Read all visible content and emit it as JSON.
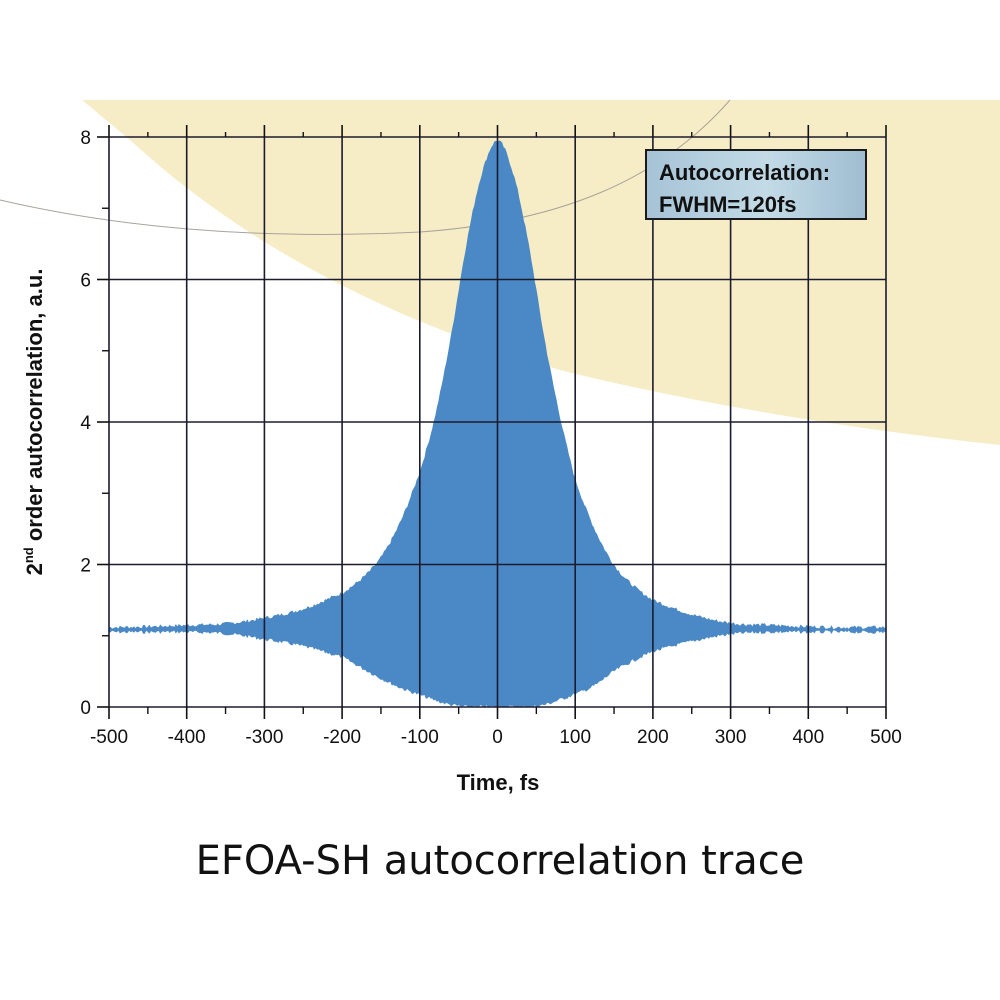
{
  "chart_data": {
    "type": "area",
    "title": "EFOA-SH autocorrelation trace",
    "xlabel": "Time, fs",
    "ylabel": "2nd order autocorrelation, a.u.",
    "ylabel_parts": {
      "base": "2",
      "superscript": "nd",
      "rest": " order autocorrelation, a.u."
    },
    "xlim": [
      -500,
      500
    ],
    "ylim": [
      0,
      8
    ],
    "grid": true,
    "x_ticks": [
      -500,
      -400,
      -300,
      -200,
      -100,
      0,
      100,
      200,
      300,
      400,
      500
    ],
    "x_tick_labels": [
      "-500",
      "-400",
      "-300",
      "-200",
      "-100",
      "0",
      "100",
      "200",
      "300",
      "400",
      "500"
    ],
    "y_ticks": [
      0,
      2,
      4,
      6,
      8
    ],
    "y_tick_labels": [
      "0",
      "2",
      "4",
      "6",
      "8"
    ],
    "annotation": {
      "line1": "Autocorrelation:",
      "line2": "FWHM=120fs"
    },
    "fill_color": "#4a89c6",
    "series": [
      {
        "name": "upper envelope",
        "x": [
          -500,
          -450,
          -400,
          -350,
          -300,
          -250,
          -200,
          -175,
          -150,
          -125,
          -100,
          -80,
          -60,
          -40,
          -20,
          0,
          20,
          40,
          60,
          80,
          100,
          125,
          150,
          175,
          200,
          250,
          300,
          350,
          400,
          450,
          500
        ],
        "values": [
          1.12,
          1.13,
          1.15,
          1.17,
          1.25,
          1.38,
          1.6,
          1.8,
          2.1,
          2.6,
          3.3,
          4.1,
          5.2,
          6.5,
          7.5,
          7.95,
          7.5,
          6.5,
          5.2,
          4.1,
          3.2,
          2.5,
          2.0,
          1.7,
          1.5,
          1.3,
          1.18,
          1.15,
          1.13,
          1.12,
          1.12
        ]
      },
      {
        "name": "lower envelope",
        "x": [
          -500,
          -450,
          -400,
          -350,
          -300,
          -250,
          -200,
          -175,
          -150,
          -125,
          -100,
          -80,
          -60,
          -40,
          -20,
          0,
          20,
          40,
          60,
          80,
          100,
          125,
          150,
          175,
          200,
          250,
          300,
          350,
          400,
          450,
          500
        ],
        "values": [
          1.05,
          1.05,
          1.05,
          1.03,
          0.95,
          0.85,
          0.7,
          0.55,
          0.4,
          0.27,
          0.17,
          0.09,
          0.03,
          0.0,
          0.0,
          0.0,
          0.0,
          0.0,
          0.03,
          0.1,
          0.18,
          0.3,
          0.5,
          0.65,
          0.78,
          0.92,
          1.02,
          1.05,
          1.05,
          1.05,
          1.05
        ]
      }
    ]
  },
  "caption": "EFOA-SH autocorrelation trace",
  "background": {
    "cream": "#f6edc6",
    "arc_line": "#a8a49a"
  }
}
